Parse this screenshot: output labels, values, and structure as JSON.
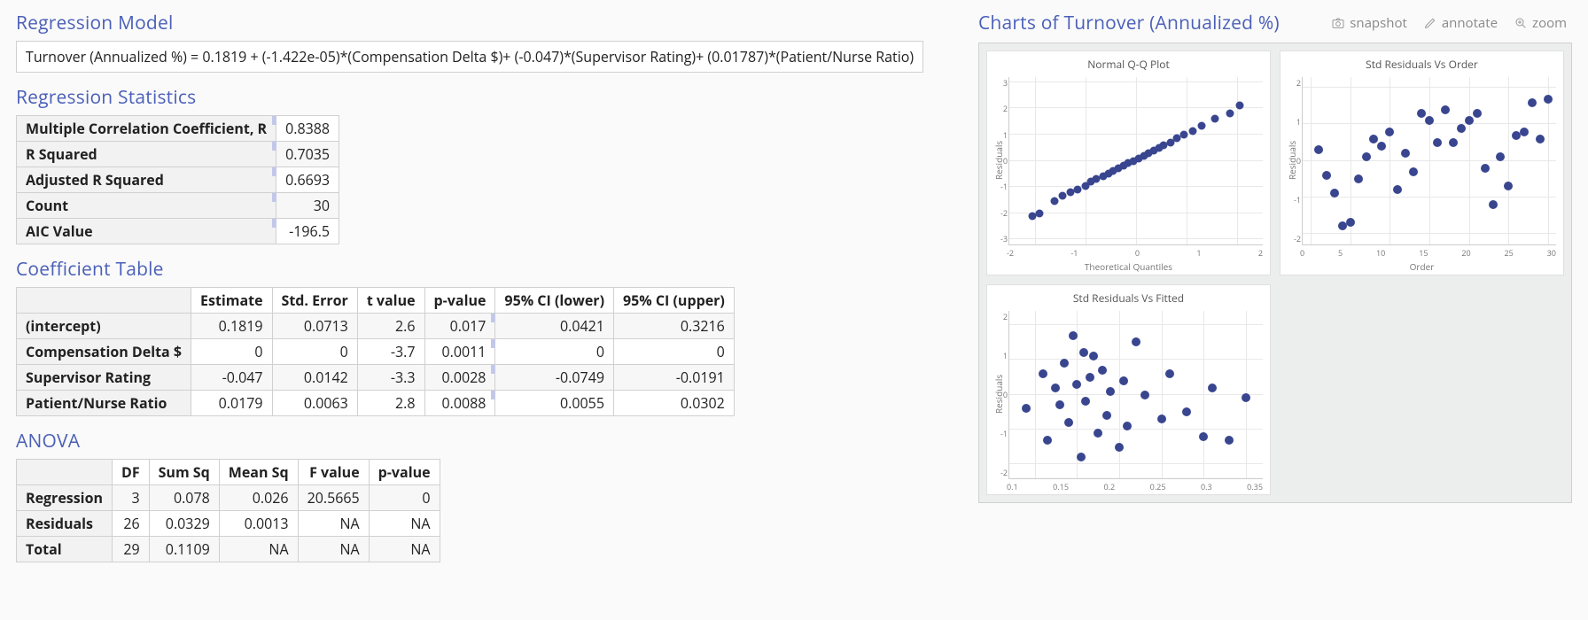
{
  "colors": {
    "title": "#4a5fb8",
    "marker": "#39468f",
    "grid": "#e8e8e8",
    "border": "#d0d0d0",
    "panel_bg": "#eceded"
  },
  "sections": {
    "model": "Regression Model",
    "stats": "Regression Statistics",
    "coef": "Coefficient Table",
    "anova": "ANOVA",
    "charts": "Charts of Turnover (Annualized %)"
  },
  "equation": "Turnover (Annualized %) = 0.1819 + (-1.422e-05)*(Compensation Delta $)+ (-0.047)*(Supervisor Rating)+ (0.01787)*(Patient/Nurse Ratio)",
  "stats": {
    "rows": [
      {
        "label": "Multiple Correlation Coefficient, R",
        "value": "0.8388"
      },
      {
        "label": "R Squared",
        "value": "0.7035"
      },
      {
        "label": "Adjusted R Squared",
        "value": "0.6693"
      },
      {
        "label": "Count",
        "value": "30"
      },
      {
        "label": "AIC Value",
        "value": "-196.5"
      }
    ]
  },
  "coef": {
    "headers": [
      "",
      "Estimate",
      "Std. Error",
      "t value",
      "p-value",
      "95% CI (lower)",
      "95% CI (upper)"
    ],
    "rows": [
      {
        "name": "(intercept)",
        "est": "0.1819",
        "se": "0.0713",
        "t": "2.6",
        "p": "0.017",
        "lo": "0.0421",
        "hi": "0.3216"
      },
      {
        "name": "Compensation Delta $",
        "est": "0",
        "se": "0",
        "t": "-3.7",
        "p": "0.0011",
        "lo": "0",
        "hi": "0"
      },
      {
        "name": "Supervisor Rating",
        "est": "-0.047",
        "se": "0.0142",
        "t": "-3.3",
        "p": "0.0028",
        "lo": "-0.0749",
        "hi": "-0.0191"
      },
      {
        "name": "Patient/Nurse Ratio",
        "est": "0.0179",
        "se": "0.0063",
        "t": "2.8",
        "p": "0.0088",
        "lo": "0.0055",
        "hi": "0.0302"
      }
    ]
  },
  "anova": {
    "headers": [
      "",
      "DF",
      "Sum Sq",
      "Mean Sq",
      "F value",
      "p-value"
    ],
    "rows": [
      {
        "name": "Regression",
        "df": "3",
        "ss": "0.078",
        "ms": "0.026",
        "f": "20.5665",
        "p": "0"
      },
      {
        "name": "Residuals",
        "df": "26",
        "ss": "0.0329",
        "ms": "0.0013",
        "f": "NA",
        "p": "NA"
      },
      {
        "name": "Total",
        "df": "29",
        "ss": "0.1109",
        "ms": "NA",
        "f": "NA",
        "p": "NA"
      }
    ]
  },
  "toolbar": {
    "snapshot": "snapshot",
    "annotate": "annotate",
    "zoom": "zoom"
  },
  "charts": [
    {
      "id": "qq",
      "title": "Normal Q-Q Plot",
      "type": "scatter",
      "xlabel": "Theoretical Quantiles",
      "ylabel": "Residuals",
      "xlim": [
        -2.5,
        2.5
      ],
      "ylim": [
        -3.2,
        3.2
      ],
      "xticks": [
        -2,
        -1,
        0,
        1,
        2
      ],
      "yticks": [
        -3,
        -2,
        -1,
        0,
        1,
        2,
        3
      ],
      "marker_color": "#39468f",
      "marker_size": 9,
      "points": [
        [
          -2.05,
          -2.1
        ],
        [
          -1.9,
          -2.0
        ],
        [
          -1.6,
          -1.55
        ],
        [
          -1.45,
          -1.35
        ],
        [
          -1.3,
          -1.2
        ],
        [
          -1.15,
          -1.1
        ],
        [
          -1.0,
          -0.95
        ],
        [
          -0.9,
          -0.8
        ],
        [
          -0.78,
          -0.7
        ],
        [
          -0.65,
          -0.6
        ],
        [
          -0.55,
          -0.5
        ],
        [
          -0.45,
          -0.4
        ],
        [
          -0.35,
          -0.3
        ],
        [
          -0.25,
          -0.2
        ],
        [
          -0.15,
          -0.1
        ],
        [
          -0.05,
          0.0
        ],
        [
          0.05,
          0.1
        ],
        [
          0.15,
          0.2
        ],
        [
          0.25,
          0.3
        ],
        [
          0.35,
          0.4
        ],
        [
          0.45,
          0.5
        ],
        [
          0.55,
          0.6
        ],
        [
          0.68,
          0.7
        ],
        [
          0.8,
          0.85
        ],
        [
          0.95,
          1.0
        ],
        [
          1.12,
          1.15
        ],
        [
          1.3,
          1.35
        ],
        [
          1.55,
          1.6
        ],
        [
          1.85,
          1.8
        ],
        [
          2.05,
          2.1
        ]
      ]
    },
    {
      "id": "order",
      "title": "Std Residuals Vs Order",
      "type": "scatter",
      "xlabel": "Order",
      "ylabel": "Residuals",
      "xlim": [
        -1,
        31
      ],
      "ylim": [
        -2.3,
        2.3
      ],
      "xticks": [
        0,
        5,
        10,
        15,
        20,
        25,
        30
      ],
      "yticks": [
        -2,
        -1,
        0,
        1,
        2
      ],
      "marker_color": "#39468f",
      "marker_size": 10,
      "points": [
        [
          1,
          0.3
        ],
        [
          2,
          -0.4
        ],
        [
          3,
          -0.9
        ],
        [
          4,
          -1.8
        ],
        [
          5,
          -1.7
        ],
        [
          6,
          -0.5
        ],
        [
          7,
          0.1
        ],
        [
          8,
          0.6
        ],
        [
          9,
          0.4
        ],
        [
          10,
          0.8
        ],
        [
          11,
          -0.8
        ],
        [
          12,
          0.2
        ],
        [
          13,
          -0.3
        ],
        [
          14,
          1.3
        ],
        [
          15,
          1.1
        ],
        [
          16,
          0.5
        ],
        [
          17,
          1.4
        ],
        [
          18,
          0.5
        ],
        [
          19,
          0.9
        ],
        [
          20,
          1.1
        ],
        [
          21,
          1.3
        ],
        [
          22,
          -0.2
        ],
        [
          23,
          -1.2
        ],
        [
          24,
          0.1
        ],
        [
          25,
          -0.7
        ],
        [
          26,
          0.7
        ],
        [
          27,
          0.8
        ],
        [
          28,
          1.6
        ],
        [
          29,
          0.6
        ],
        [
          30,
          1.7
        ]
      ]
    },
    {
      "id": "fitted",
      "title": "Std Residuals Vs Fitted",
      "type": "scatter",
      "xlabel": "",
      "ylabel": "Residuals",
      "xlim": [
        0.07,
        0.37
      ],
      "ylim": [
        -2.4,
        2.4
      ],
      "xticks": [
        0.1,
        0.15,
        0.2,
        0.25,
        0.3,
        0.35
      ],
      "yticks": [
        -2,
        -1,
        0,
        1,
        2
      ],
      "marker_color": "#39468f",
      "marker_size": 10,
      "points": [
        [
          0.09,
          -0.4
        ],
        [
          0.11,
          0.6
        ],
        [
          0.115,
          -1.3
        ],
        [
          0.125,
          0.2
        ],
        [
          0.13,
          -0.3
        ],
        [
          0.135,
          0.9
        ],
        [
          0.14,
          -0.8
        ],
        [
          0.145,
          1.7
        ],
        [
          0.15,
          0.3
        ],
        [
          0.155,
          -1.8
        ],
        [
          0.158,
          1.2
        ],
        [
          0.16,
          -0.2
        ],
        [
          0.165,
          0.5
        ],
        [
          0.17,
          1.1
        ],
        [
          0.175,
          -1.1
        ],
        [
          0.18,
          0.7
        ],
        [
          0.185,
          -0.6
        ],
        [
          0.19,
          0.1
        ],
        [
          0.2,
          -1.5
        ],
        [
          0.205,
          0.4
        ],
        [
          0.21,
          -0.9
        ],
        [
          0.22,
          1.5
        ],
        [
          0.23,
          0.0
        ],
        [
          0.25,
          -0.7
        ],
        [
          0.26,
          0.6
        ],
        [
          0.28,
          -0.5
        ],
        [
          0.3,
          -1.2
        ],
        [
          0.31,
          0.2
        ],
        [
          0.33,
          -1.3
        ],
        [
          0.35,
          -0.1
        ]
      ]
    }
  ]
}
